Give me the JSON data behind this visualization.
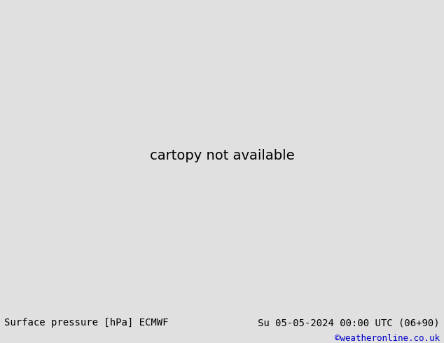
{
  "bottom_left_text": "Surface pressure [hPa] ECMWF",
  "bottom_right_text": "Su 05-05-2024 00:00 UTC (06+90)",
  "bottom_credit": "©weatheronline.co.uk",
  "text_fontsize": 10,
  "credit_color": "#0000cc",
  "fig_width": 6.34,
  "fig_height": 4.9,
  "dpi": 100,
  "ocean_color": "#c8c8c8",
  "land_color": "#a8e0a8",
  "border_color": "#808080",
  "map_extent": [
    -30,
    80,
    -42,
    42
  ],
  "footer_color": "#e0e0e0",
  "footer_line_color": "#000000",
  "contour_interval": 4,
  "pressure_base": 1013,
  "red_color": "#dd0000",
  "blue_color": "#0000cc",
  "black_color": "#000000",
  "line_width": 0.8,
  "label_fontsize": 6
}
